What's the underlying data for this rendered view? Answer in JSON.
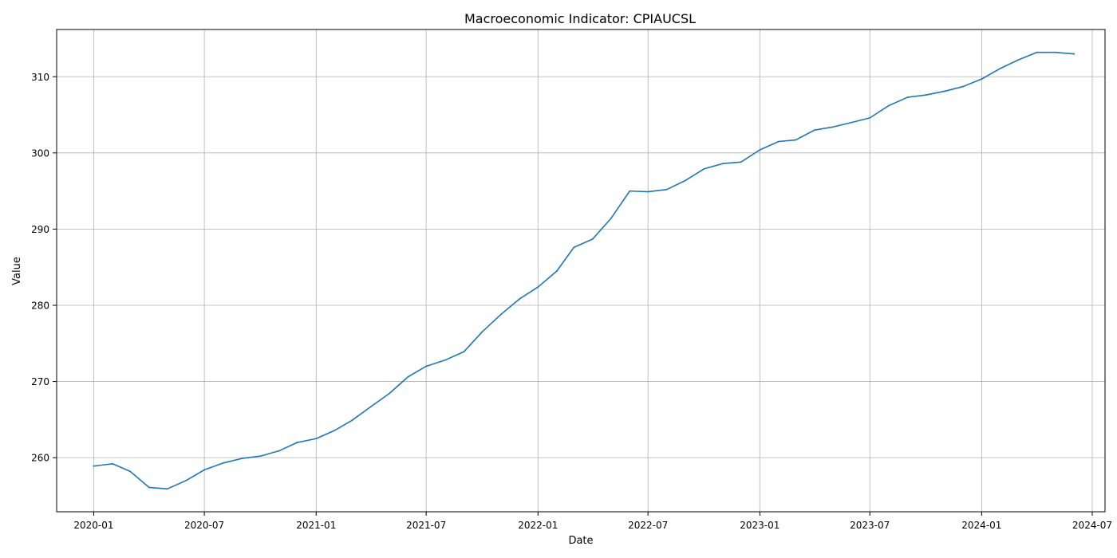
{
  "chart_data": {
    "type": "line",
    "title": "Macroeconomic Indicator: CPIAUCSL",
    "xlabel": "Date",
    "ylabel": "Value",
    "grid": true,
    "xlim": [
      "2019-11-01",
      "2024-07-22"
    ],
    "ylim": [
      252.9,
      316.2
    ],
    "x_ticks": [
      "2020-01",
      "2020-07",
      "2021-01",
      "2021-07",
      "2022-01",
      "2022-07",
      "2023-01",
      "2023-07",
      "2024-01",
      "2024-07"
    ],
    "y_ticks": [
      260,
      270,
      280,
      290,
      300,
      310
    ],
    "series": [
      {
        "name": "CPIAUCSL",
        "color": "#1f77b4",
        "x": [
          "2020-01-01",
          "2020-02-01",
          "2020-03-01",
          "2020-04-01",
          "2020-05-01",
          "2020-06-01",
          "2020-07-01",
          "2020-08-01",
          "2020-09-01",
          "2020-10-01",
          "2020-11-01",
          "2020-12-01",
          "2021-01-01",
          "2021-02-01",
          "2021-03-01",
          "2021-04-01",
          "2021-05-01",
          "2021-06-01",
          "2021-07-01",
          "2021-08-01",
          "2021-09-01",
          "2021-10-01",
          "2021-11-01",
          "2021-12-01",
          "2022-01-01",
          "2022-02-01",
          "2022-03-01",
          "2022-04-01",
          "2022-05-01",
          "2022-06-01",
          "2022-07-01",
          "2022-08-01",
          "2022-09-01",
          "2022-10-01",
          "2022-11-01",
          "2022-12-01",
          "2023-01-01",
          "2023-02-01",
          "2023-03-01",
          "2023-04-01",
          "2023-05-01",
          "2023-06-01",
          "2023-07-01",
          "2023-08-01",
          "2023-09-01",
          "2023-10-01",
          "2023-11-01",
          "2023-12-01",
          "2024-01-01",
          "2024-02-01",
          "2024-03-01",
          "2024-04-01",
          "2024-05-01",
          "2024-06-01"
        ],
        "values": [
          258.9,
          259.2,
          258.2,
          256.1,
          255.9,
          257.0,
          258.4,
          259.3,
          259.9,
          260.2,
          260.9,
          262.0,
          262.5,
          263.6,
          264.9,
          266.7,
          268.4,
          270.6,
          272.0,
          272.8,
          273.9,
          276.5,
          278.8,
          280.8,
          282.4,
          284.5,
          287.6,
          288.7,
          291.4,
          295.0,
          294.9,
          295.2,
          296.4,
          297.9,
          298.6,
          298.8,
          300.4,
          301.5,
          301.7,
          303.0,
          303.4,
          304.0,
          304.6,
          306.2,
          307.3,
          307.6,
          308.1,
          308.7,
          309.7,
          311.1,
          312.2,
          313.2,
          313.2,
          313.0
        ]
      }
    ]
  }
}
